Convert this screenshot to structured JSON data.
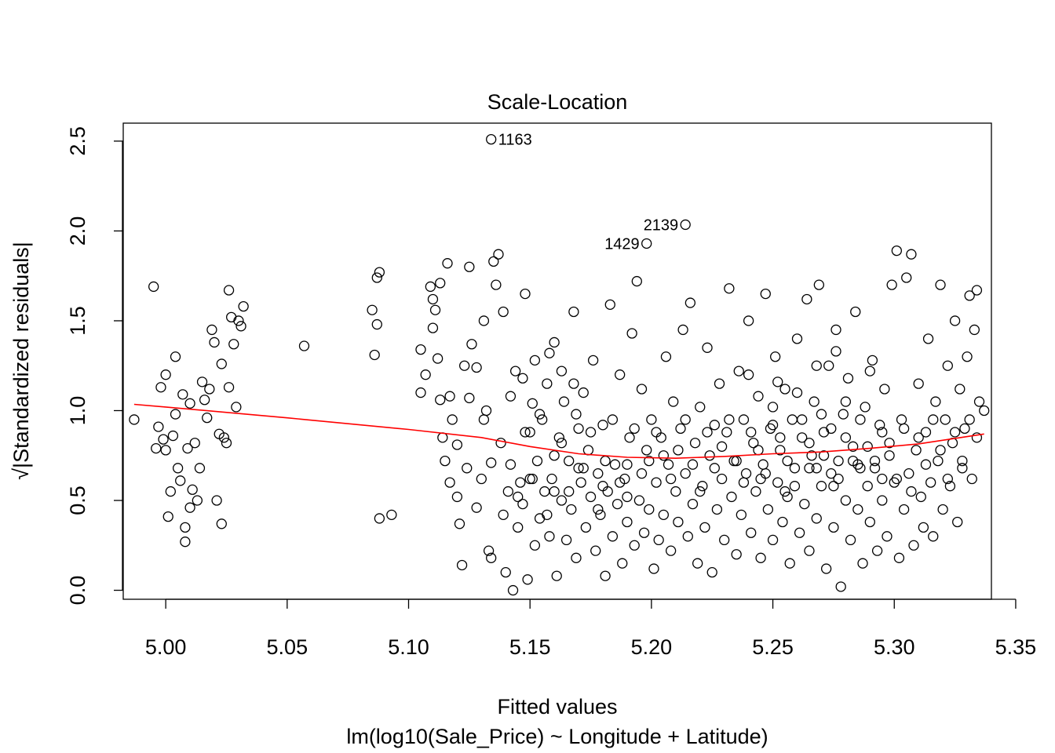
{
  "chart_data": {
    "type": "scatter",
    "title": "Scale-Location",
    "xlabel": "Fitted values",
    "subtitle": "lm(log10(Sale_Price) ~ Longitude + Latitude)",
    "ylabel_radical": "√",
    "ylabel": "|Standardized residuals|",
    "xlim": [
      4.9825,
      5.34
    ],
    "ylim": [
      -0.05,
      2.6
    ],
    "x_ticks": [
      5.0,
      5.05,
      5.1,
      5.15,
      5.2,
      5.25,
      5.3,
      5.35
    ],
    "x_tick_labels": [
      "5.00",
      "5.05",
      "5.10",
      "5.15",
      "5.20",
      "5.25",
      "5.30",
      "5.35"
    ],
    "y_ticks": [
      0.0,
      0.5,
      1.0,
      1.5,
      2.0,
      2.5
    ],
    "y_tick_labels": [
      "0.0",
      "0.5",
      "1.0",
      "1.5",
      "2.0",
      "2.5"
    ],
    "grid": false,
    "smooth_color": "#ff0000",
    "point_color": "#000000",
    "smooth_line": [
      [
        4.987,
        1.035
      ],
      [
        5.0,
        1.02
      ],
      [
        5.05,
        0.96
      ],
      [
        5.1,
        0.895
      ],
      [
        5.13,
        0.85
      ],
      [
        5.15,
        0.8
      ],
      [
        5.17,
        0.76
      ],
      [
        5.19,
        0.74
      ],
      [
        5.21,
        0.735
      ],
      [
        5.23,
        0.745
      ],
      [
        5.25,
        0.76
      ],
      [
        5.27,
        0.77
      ],
      [
        5.29,
        0.79
      ],
      [
        5.31,
        0.815
      ],
      [
        5.337,
        0.87
      ]
    ],
    "labeled_points": [
      {
        "label": "1163",
        "x": 5.134,
        "y": 2.51
      },
      {
        "label": "2139",
        "x": 5.214,
        "y": 2.035
      },
      {
        "label": "1429",
        "x": 5.198,
        "y": 1.93
      }
    ],
    "points": [
      [
        4.987,
        0.95
      ],
      [
        4.995,
        1.69
      ],
      [
        4.996,
        0.79
      ],
      [
        4.997,
        0.91
      ],
      [
        4.998,
        1.13
      ],
      [
        4.999,
        0.84
      ],
      [
        5.0,
        1.2
      ],
      [
        5.0,
        0.78
      ],
      [
        5.001,
        0.41
      ],
      [
        5.002,
        0.55
      ],
      [
        5.003,
        0.86
      ],
      [
        5.004,
        0.98
      ],
      [
        5.004,
        1.3
      ],
      [
        5.005,
        0.68
      ],
      [
        5.006,
        0.61
      ],
      [
        5.007,
        1.09
      ],
      [
        5.008,
        0.35
      ],
      [
        5.008,
        0.27
      ],
      [
        5.009,
        0.79
      ],
      [
        5.01,
        1.04
      ],
      [
        5.01,
        0.46
      ],
      [
        5.011,
        0.56
      ],
      [
        5.012,
        0.82
      ],
      [
        5.013,
        0.5
      ],
      [
        5.014,
        0.68
      ],
      [
        5.015,
        1.16
      ],
      [
        5.016,
        1.06
      ],
      [
        5.017,
        0.96
      ],
      [
        5.018,
        1.12
      ],
      [
        5.019,
        1.45
      ],
      [
        5.02,
        1.38
      ],
      [
        5.021,
        0.5
      ],
      [
        5.022,
        0.87
      ],
      [
        5.023,
        1.26
      ],
      [
        5.023,
        0.37
      ],
      [
        5.024,
        0.85
      ],
      [
        5.025,
        0.82
      ],
      [
        5.026,
        1.13
      ],
      [
        5.026,
        1.67
      ],
      [
        5.027,
        1.52
      ],
      [
        5.028,
        1.37
      ],
      [
        5.029,
        1.02
      ],
      [
        5.03,
        1.5
      ],
      [
        5.031,
        1.47
      ],
      [
        5.032,
        1.58
      ],
      [
        5.057,
        1.36
      ],
      [
        5.085,
        1.56
      ],
      [
        5.086,
        1.31
      ],
      [
        5.087,
        1.74
      ],
      [
        5.087,
        1.48
      ],
      [
        5.088,
        1.77
      ],
      [
        5.088,
        0.4
      ],
      [
        5.093,
        0.42
      ],
      [
        5.105,
        1.1
      ],
      [
        5.107,
        1.2
      ],
      [
        5.109,
        1.69
      ],
      [
        5.11,
        1.46
      ],
      [
        5.111,
        1.56
      ],
      [
        5.112,
        1.29
      ],
      [
        5.113,
        1.06
      ],
      [
        5.114,
        0.85
      ],
      [
        5.115,
        0.72
      ],
      [
        5.116,
        1.82
      ],
      [
        5.117,
        0.6
      ],
      [
        5.118,
        0.95
      ],
      [
        5.12,
        0.52
      ],
      [
        5.121,
        0.37
      ],
      [
        5.122,
        0.14
      ],
      [
        5.123,
        1.25
      ],
      [
        5.124,
        0.68
      ],
      [
        5.125,
        1.8
      ],
      [
        5.126,
        1.37
      ],
      [
        5.128,
        0.46
      ],
      [
        5.13,
        0.62
      ],
      [
        5.131,
        1.5
      ],
      [
        5.132,
        1.0
      ],
      [
        5.133,
        0.22
      ],
      [
        5.134,
        0.18
      ],
      [
        5.135,
        1.83
      ],
      [
        5.136,
        1.7
      ],
      [
        5.137,
        1.87
      ],
      [
        5.138,
        0.82
      ],
      [
        5.139,
        0.42
      ],
      [
        5.14,
        0.1
      ],
      [
        5.141,
        0.55
      ],
      [
        5.142,
        0.7
      ],
      [
        5.143,
        0.0
      ],
      [
        5.144,
        1.22
      ],
      [
        5.145,
        0.35
      ],
      [
        5.146,
        0.6
      ],
      [
        5.147,
        0.48
      ],
      [
        5.148,
        1.65
      ],
      [
        5.149,
        0.06
      ],
      [
        5.15,
        0.88
      ],
      [
        5.151,
        1.04
      ],
      [
        5.152,
        0.25
      ],
      [
        5.153,
        0.72
      ],
      [
        5.154,
        0.4
      ],
      [
        5.155,
        0.95
      ],
      [
        5.156,
        0.55
      ],
      [
        5.157,
        1.15
      ],
      [
        5.158,
        0.3
      ],
      [
        5.159,
        0.62
      ],
      [
        5.16,
        1.38
      ],
      [
        5.161,
        0.08
      ],
      [
        5.162,
        0.85
      ],
      [
        5.163,
        0.5
      ],
      [
        5.164,
        1.05
      ],
      [
        5.165,
        0.28
      ],
      [
        5.166,
        0.72
      ],
      [
        5.167,
        0.45
      ],
      [
        5.168,
        1.55
      ],
      [
        5.169,
        0.18
      ],
      [
        5.17,
        0.9
      ],
      [
        5.171,
        0.6
      ],
      [
        5.172,
        1.1
      ],
      [
        5.173,
        0.35
      ],
      [
        5.174,
        0.78
      ],
      [
        5.175,
        0.52
      ],
      [
        5.176,
        1.28
      ],
      [
        5.177,
        0.22
      ],
      [
        5.178,
        0.65
      ],
      [
        5.179,
        0.42
      ],
      [
        5.18,
        0.92
      ],
      [
        5.181,
        0.08
      ],
      [
        5.182,
        0.55
      ],
      [
        5.183,
        1.59
      ],
      [
        5.184,
        0.3
      ],
      [
        5.185,
        0.7
      ],
      [
        5.186,
        0.48
      ],
      [
        5.187,
        1.2
      ],
      [
        5.188,
        0.15
      ],
      [
        5.189,
        0.62
      ],
      [
        5.19,
        0.38
      ],
      [
        5.191,
        0.85
      ],
      [
        5.192,
        1.43
      ],
      [
        5.193,
        0.25
      ],
      [
        5.194,
        1.72
      ],
      [
        5.195,
        0.5
      ],
      [
        5.196,
        1.12
      ],
      [
        5.197,
        0.32
      ],
      [
        5.198,
        0.78
      ],
      [
        5.199,
        0.45
      ],
      [
        5.2,
        0.95
      ],
      [
        5.201,
        0.12
      ],
      [
        5.202,
        0.6
      ],
      [
        5.203,
        0.28
      ],
      [
        5.204,
        0.85
      ],
      [
        5.205,
        0.42
      ],
      [
        5.206,
        1.3
      ],
      [
        5.207,
        0.7
      ],
      [
        5.208,
        0.22
      ],
      [
        5.209,
        1.05
      ],
      [
        5.21,
        0.55
      ],
      [
        5.211,
        0.38
      ],
      [
        5.212,
        0.9
      ],
      [
        5.213,
        1.45
      ],
      [
        5.214,
        0.65
      ],
      [
        5.215,
        0.3
      ],
      [
        5.216,
        1.6
      ],
      [
        5.217,
        0.48
      ],
      [
        5.218,
        0.82
      ],
      [
        5.219,
        0.15
      ],
      [
        5.22,
        1.02
      ],
      [
        5.221,
        0.58
      ],
      [
        5.222,
        0.35
      ],
      [
        5.223,
        1.35
      ],
      [
        5.224,
        0.75
      ],
      [
        5.225,
        0.1
      ],
      [
        5.226,
        0.92
      ],
      [
        5.227,
        0.45
      ],
      [
        5.228,
        1.15
      ],
      [
        5.229,
        0.62
      ],
      [
        5.23,
        0.28
      ],
      [
        5.231,
        0.88
      ],
      [
        5.232,
        1.68
      ],
      [
        5.233,
        0.52
      ],
      [
        5.234,
        0.72
      ],
      [
        5.235,
        0.2
      ],
      [
        5.236,
        1.22
      ],
      [
        5.237,
        0.42
      ],
      [
        5.238,
        0.95
      ],
      [
        5.239,
        0.65
      ],
      [
        5.24,
        1.5
      ],
      [
        5.241,
        0.32
      ],
      [
        5.242,
        0.82
      ],
      [
        5.243,
        0.55
      ],
      [
        5.244,
        1.08
      ],
      [
        5.245,
        0.18
      ],
      [
        5.246,
        0.7
      ],
      [
        5.247,
        1.65
      ],
      [
        5.248,
        0.45
      ],
      [
        5.249,
        0.9
      ],
      [
        5.25,
        0.28
      ],
      [
        5.251,
        1.3
      ],
      [
        5.252,
        0.6
      ],
      [
        5.253,
        0.78
      ],
      [
        5.254,
        0.38
      ],
      [
        5.255,
        1.12
      ],
      [
        5.256,
        0.52
      ],
      [
        5.257,
        0.15
      ],
      [
        5.258,
        0.95
      ],
      [
        5.259,
        0.68
      ],
      [
        5.26,
        1.4
      ],
      [
        5.261,
        0.32
      ],
      [
        5.262,
        0.85
      ],
      [
        5.263,
        0.48
      ],
      [
        5.264,
        1.62
      ],
      [
        5.265,
        0.22
      ],
      [
        5.266,
        0.75
      ],
      [
        5.267,
        1.05
      ],
      [
        5.268,
        0.4
      ],
      [
        5.269,
        1.7
      ],
      [
        5.27,
        0.58
      ],
      [
        5.271,
        0.88
      ],
      [
        5.272,
        0.12
      ],
      [
        5.273,
        1.25
      ],
      [
        5.274,
        0.65
      ],
      [
        5.275,
        0.35
      ],
      [
        5.276,
        1.45
      ],
      [
        5.277,
        0.72
      ],
      [
        5.278,
        0.02
      ],
      [
        5.279,
        0.98
      ],
      [
        5.28,
        0.5
      ],
      [
        5.281,
        1.18
      ],
      [
        5.282,
        0.28
      ],
      [
        5.283,
        0.8
      ],
      [
        5.284,
        1.55
      ],
      [
        5.285,
        0.45
      ],
      [
        5.286,
        0.68
      ],
      [
        5.287,
        0.15
      ],
      [
        5.288,
        1.02
      ],
      [
        5.289,
        0.58
      ],
      [
        5.29,
        0.38
      ],
      [
        5.291,
        1.28
      ],
      [
        5.292,
        0.72
      ],
      [
        5.293,
        0.22
      ],
      [
        5.294,
        0.92
      ],
      [
        5.295,
        0.5
      ],
      [
        5.296,
        1.12
      ],
      [
        5.297,
        0.3
      ],
      [
        5.298,
        0.82
      ],
      [
        5.299,
        1.7
      ],
      [
        5.3,
        0.6
      ],
      [
        5.301,
        1.89
      ],
      [
        5.302,
        0.18
      ],
      [
        5.303,
        0.95
      ],
      [
        5.304,
        0.45
      ],
      [
        5.305,
        1.74
      ],
      [
        5.306,
        0.65
      ],
      [
        5.307,
        1.87
      ],
      [
        5.308,
        0.25
      ],
      [
        5.309,
        0.78
      ],
      [
        5.31,
        1.15
      ],
      [
        5.311,
        0.52
      ],
      [
        5.312,
        0.35
      ],
      [
        5.313,
        0.88
      ],
      [
        5.314,
        1.4
      ],
      [
        5.315,
        0.6
      ],
      [
        5.316,
        0.3
      ],
      [
        5.317,
        1.05
      ],
      [
        5.318,
        0.72
      ],
      [
        5.319,
        1.7
      ],
      [
        5.32,
        0.45
      ],
      [
        5.321,
        0.95
      ],
      [
        5.322,
        1.25
      ],
      [
        5.323,
        0.58
      ],
      [
        5.324,
        0.82
      ],
      [
        5.325,
        1.5
      ],
      [
        5.326,
        0.38
      ],
      [
        5.327,
        1.12
      ],
      [
        5.328,
        0.68
      ],
      [
        5.329,
        0.9
      ],
      [
        5.33,
        1.3
      ],
      [
        5.331,
        1.64
      ],
      [
        5.332,
        0.62
      ],
      [
        5.333,
        1.45
      ],
      [
        5.334,
        1.67
      ],
      [
        5.335,
        1.05
      ],
      [
        5.337,
        1.0
      ],
      [
        5.105,
        1.34
      ],
      [
        5.11,
        1.62
      ],
      [
        5.113,
        1.71
      ],
      [
        5.117,
        1.08
      ],
      [
        5.12,
        0.81
      ],
      [
        5.125,
        1.07
      ],
      [
        5.128,
        1.24
      ],
      [
        5.131,
        0.95
      ],
      [
        5.134,
        0.71
      ],
      [
        5.139,
        1.55
      ],
      [
        5.142,
        1.08
      ],
      [
        5.145,
        0.52
      ],
      [
        5.148,
        0.88
      ],
      [
        5.151,
        0.62
      ],
      [
        5.154,
        0.98
      ],
      [
        5.157,
        0.42
      ],
      [
        5.16,
        0.75
      ],
      [
        5.163,
        0.82
      ],
      [
        5.166,
        0.55
      ],
      [
        5.169,
        0.98
      ],
      [
        5.172,
        0.68
      ],
      [
        5.175,
        0.88
      ],
      [
        5.178,
        0.45
      ],
      [
        5.181,
        0.72
      ],
      [
        5.184,
        0.95
      ],
      [
        5.187,
        0.6
      ],
      [
        5.19,
        0.52
      ],
      [
        5.193,
        0.9
      ],
      [
        5.196,
        0.65
      ],
      [
        5.199,
        0.72
      ],
      [
        5.202,
        0.88
      ],
      [
        5.205,
        0.75
      ],
      [
        5.208,
        0.62
      ],
      [
        5.211,
        0.78
      ],
      [
        5.214,
        0.95
      ],
      [
        5.217,
        0.7
      ],
      [
        5.22,
        0.55
      ],
      [
        5.223,
        0.88
      ],
      [
        5.226,
        0.68
      ],
      [
        5.229,
        0.8
      ],
      [
        5.232,
        0.95
      ],
      [
        5.235,
        0.72
      ],
      [
        5.238,
        0.6
      ],
      [
        5.241,
        0.88
      ],
      [
        5.244,
        0.78
      ],
      [
        5.247,
        0.65
      ],
      [
        5.25,
        0.92
      ],
      [
        5.253,
        0.85
      ],
      [
        5.256,
        0.72
      ],
      [
        5.259,
        0.58
      ],
      [
        5.262,
        0.95
      ],
      [
        5.265,
        0.82
      ],
      [
        5.268,
        0.68
      ],
      [
        5.271,
        0.75
      ],
      [
        5.274,
        0.9
      ],
      [
        5.277,
        0.62
      ],
      [
        5.28,
        0.85
      ],
      [
        5.283,
        0.72
      ],
      [
        5.286,
        0.95
      ],
      [
        5.289,
        0.8
      ],
      [
        5.292,
        0.68
      ],
      [
        5.295,
        0.88
      ],
      [
        5.298,
        0.75
      ],
      [
        5.301,
        0.62
      ],
      [
        5.304,
        0.9
      ],
      [
        5.307,
        0.55
      ],
      [
        5.31,
        0.85
      ],
      [
        5.313,
        0.7
      ],
      [
        5.316,
        0.95
      ],
      [
        5.319,
        0.78
      ],
      [
        5.322,
        0.62
      ],
      [
        5.325,
        0.88
      ],
      [
        5.328,
        0.72
      ],
      [
        5.331,
        0.95
      ],
      [
        5.334,
        0.85
      ],
      [
        5.15,
        0.62
      ],
      [
        5.16,
        0.55
      ],
      [
        5.17,
        0.68
      ],
      [
        5.18,
        0.58
      ],
      [
        5.19,
        0.7
      ],
      [
        5.245,
        0.62
      ],
      [
        5.255,
        0.55
      ],
      [
        5.265,
        0.68
      ],
      [
        5.275,
        0.58
      ],
      [
        5.285,
        0.7
      ],
      [
        5.295,
        0.62
      ],
      [
        5.25,
        1.02
      ],
      [
        5.26,
        1.1
      ],
      [
        5.27,
        0.98
      ],
      [
        5.28,
        1.05
      ],
      [
        5.147,
        1.18
      ],
      [
        5.152,
        1.28
      ],
      [
        5.158,
        1.32
      ],
      [
        5.163,
        1.22
      ],
      [
        5.168,
        1.15
      ],
      [
        5.24,
        1.2
      ],
      [
        5.252,
        1.16
      ],
      [
        5.268,
        1.25
      ],
      [
        5.276,
        1.33
      ],
      [
        5.29,
        1.22
      ]
    ]
  }
}
